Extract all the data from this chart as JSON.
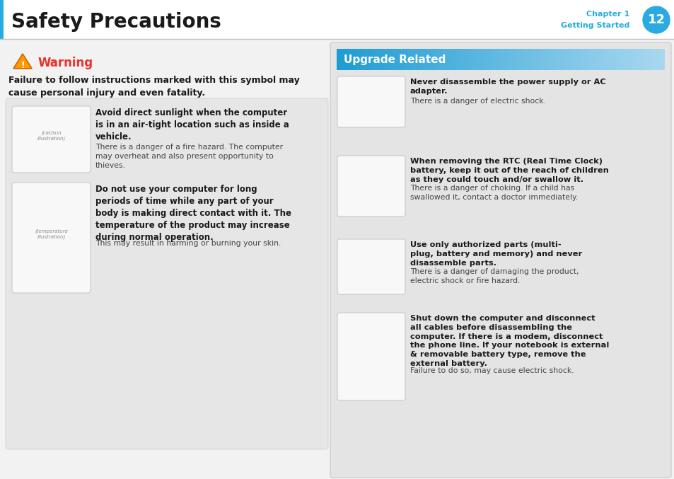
{
  "bg_color": "#f2f2f2",
  "header_bg": "#ffffff",
  "header_title": "Safety Precautions",
  "header_title_color": "#1a1a1a",
  "header_chapter": "Chapter 1",
  "header_subtitle": "Getting Started",
  "header_page": "12",
  "header_page_bg": "#29abe2",
  "header_text_color": "#29abe2",
  "header_left_bar": "#29abe2",
  "warning_color": "#e8322a",
  "warning_title": "Warning",
  "warning_intro": "Failure to follow instructions marked with this symbol may\ncause personal injury and even fatality.",
  "upgrade_header_text": "Upgrade Related",
  "upgrade_color_left": "#1e9dd4",
  "upgrade_color_right": "#a8d8f0",
  "right_panel_bg": "#e4e4e4",
  "left_panel_bg": "#f2f2f2",
  "item_box_bg": "#e4e4e4",
  "image_box_bg": "#f8f8f8",
  "image_box_border": "#c8c8c8",
  "text_normal_color": "#444444",
  "text_bold_color": "#1a1a1a",
  "left_items": [
    {
      "bold": "Avoid direct sunlight when the computer\nis in an air-tight location such as inside a\nvehicle.",
      "normal": "There is a danger of a fire hazard. The computer\nmay overheat and also present opportunity to\nthieves."
    },
    {
      "bold": "Do not use your computer for long\nperiods of time while any part of your\nbody is making direct contact with it. The\ntemperature of the product may increase\nduring normal operation.",
      "normal": "This may result in harming or burning your skin."
    }
  ],
  "right_items": [
    {
      "bold": "Never disassemble the power supply or AC\nadapter.",
      "normal": "There is a danger of electric shock."
    },
    {
      "bold": "When removing the RTC (Real Time Clock)\nbattery, keep it out of the reach of children\nas they could touch and/or swallow it.",
      "normal": "There is a danger of choking. If a child has\nswallowed it, contact a doctor immediately."
    },
    {
      "bold": "Use only authorized parts (multi-\nplug, battery and memory) and never\ndisassemble parts.",
      "normal": "There is a danger of damaging the product,\nelectric shock or fire hazard."
    },
    {
      "bold": "Shut down the computer and disconnect\nall cables before disassembling the\ncomputer. If there is a modem, disconnect\nthe phone line. If your notebook is external\n& removable battery type, remove the\nexternal battery.",
      "normal": "Failure to do so, may cause electric shock."
    }
  ]
}
